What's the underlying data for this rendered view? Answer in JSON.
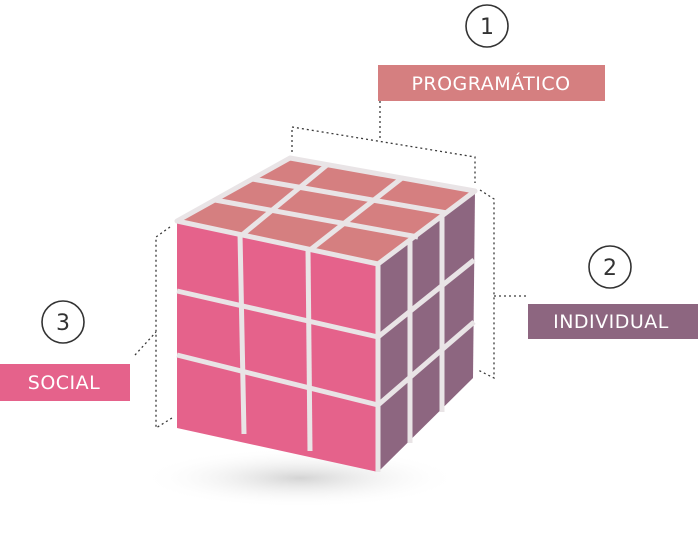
{
  "labels": {
    "programatico": {
      "number": "1",
      "text": "PROGRAMÁTICO"
    },
    "individual": {
      "number": "2",
      "text": "INDIVIDUAL"
    },
    "social": {
      "number": "3",
      "text": "SOCIAL"
    }
  },
  "colors": {
    "front_face": "#e5628b",
    "top_face": "#d57f80",
    "side_face": "#8d6680",
    "programatico_box": "#d57f80",
    "individual_box": "#8d6680",
    "social_box": "#e5628b",
    "grid_lines": "#e9e4e6"
  }
}
